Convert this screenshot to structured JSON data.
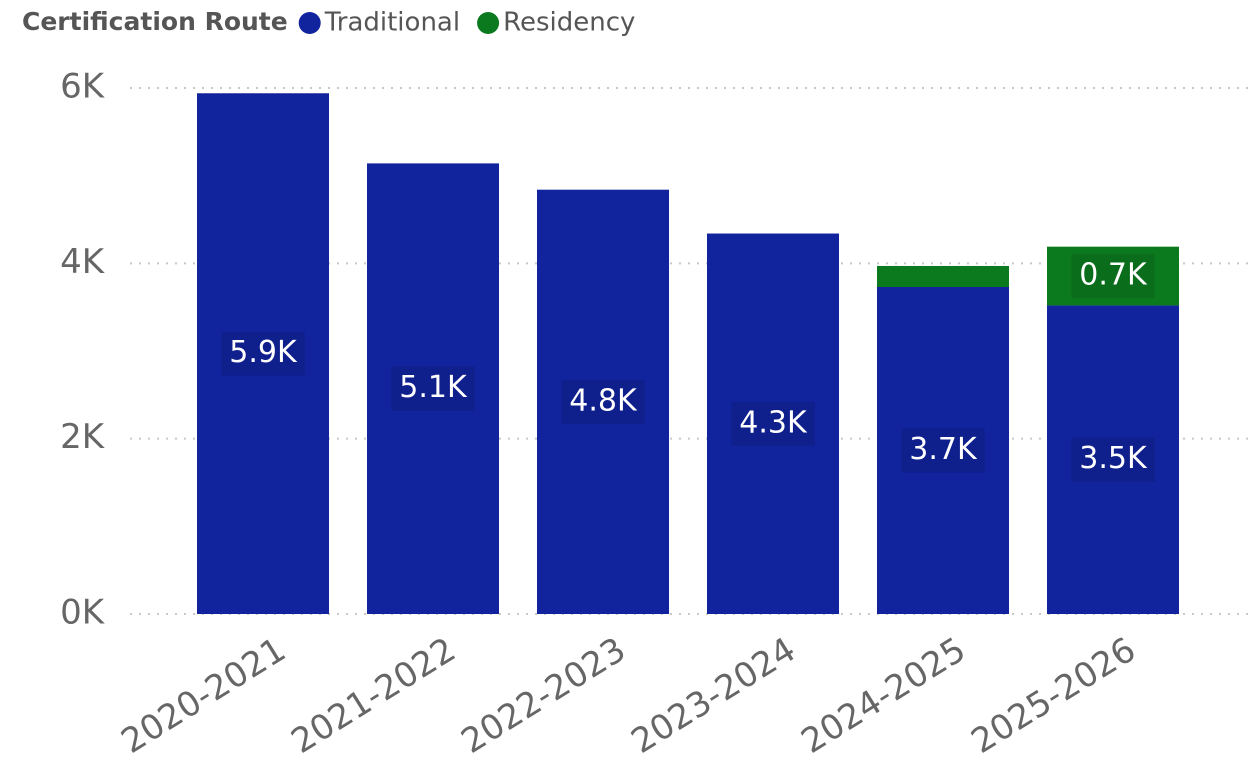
{
  "chart_data": {
    "type": "stacked_bar",
    "legend_title": "Certification Route",
    "categories": [
      "2020-2021",
      "2021-2022",
      "2022-2023",
      "2023-2024",
      "2024-2025",
      "2025-2026"
    ],
    "series": [
      {
        "name": "Traditional",
        "color": "#12239e",
        "values": [
          5940,
          5140,
          4840,
          4340,
          3730,
          3520
        ],
        "value_labels": [
          "5.9K",
          "5.1K",
          "4.8K",
          "4.3K",
          "3.7K",
          "3.5K"
        ]
      },
      {
        "name": "Residency",
        "color": "#0b7a1f",
        "values": [
          0,
          0,
          0,
          0,
          240,
          670
        ],
        "value_labels": [
          null,
          null,
          null,
          null,
          null,
          "0.7K"
        ]
      }
    ],
    "ylim": [
      0,
      6000
    ],
    "yticks": [
      {
        "value": 0,
        "label": "0K"
      },
      {
        "value": 2000,
        "label": "2K"
      },
      {
        "value": 4000,
        "label": "4K"
      },
      {
        "value": 6000,
        "label": "6K"
      }
    ],
    "grid": true,
    "legend_position": "top-left"
  }
}
